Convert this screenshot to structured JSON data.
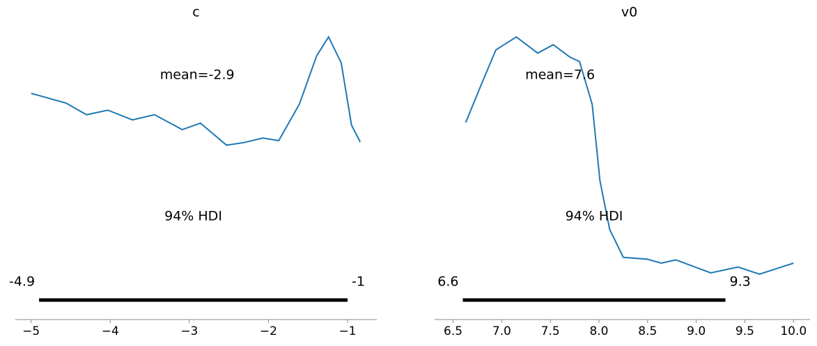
{
  "chart_data": [
    {
      "type": "line",
      "title": "c",
      "color": "#1f77b4",
      "x": [
        -5.0,
        -4.56,
        -4.3,
        -4.03,
        -3.72,
        -3.44,
        -3.09,
        -2.86,
        -2.53,
        -2.31,
        -2.07,
        -1.87,
        -1.61,
        -1.39,
        -1.24,
        -1.08,
        -0.95,
        -0.84
      ],
      "values": [
        0.349,
        0.334,
        0.316,
        0.323,
        0.308,
        0.316,
        0.293,
        0.303,
        0.269,
        0.273,
        0.28,
        0.276,
        0.332,
        0.407,
        0.436,
        0.396,
        0.3,
        0.274
      ],
      "mean": {
        "value": -2.9,
        "label": "mean=-2.9"
      },
      "hdi_label": "94% HDI",
      "hdi": [
        -4.9,
        -1
      ],
      "xlim": [
        -5.2,
        -0.63
      ],
      "ylim": [
        0,
        0.45
      ],
      "xticks": [
        {
          "value": -5,
          "label": "−5"
        },
        {
          "value": -4,
          "label": "−4"
        },
        {
          "value": -3,
          "label": "−3"
        },
        {
          "value": -2,
          "label": "−2"
        },
        {
          "value": -1,
          "label": "−1"
        }
      ]
    },
    {
      "type": "line",
      "title": "v0",
      "color": "#1f77b4",
      "x": [
        6.63,
        6.78,
        6.94,
        7.15,
        7.37,
        7.53,
        7.7,
        7.8,
        7.93,
        8.01,
        8.11,
        8.25,
        8.5,
        8.64,
        8.79,
        9.15,
        9.43,
        9.65,
        10.0
      ],
      "values": [
        0.304,
        0.359,
        0.416,
        0.436,
        0.411,
        0.424,
        0.405,
        0.398,
        0.332,
        0.214,
        0.139,
        0.096,
        0.093,
        0.087,
        0.092,
        0.072,
        0.081,
        0.07,
        0.087
      ],
      "mean": {
        "value": 7.6,
        "label": "mean=7.6"
      },
      "hdi_label": "94% HDI",
      "hdi": [
        6.6,
        9.3
      ],
      "xlim": [
        6.31,
        10.17
      ],
      "ylim": [
        0,
        0.45
      ],
      "xticks": [
        6.5,
        {
          "value": 7,
          "label": "7.0"
        },
        7.5,
        {
          "value": 8,
          "label": "8.0"
        },
        8.5,
        {
          "value": 9,
          "label": "9.0"
        },
        9.5,
        {
          "value": 10,
          "label": "10.0"
        }
      ]
    }
  ]
}
